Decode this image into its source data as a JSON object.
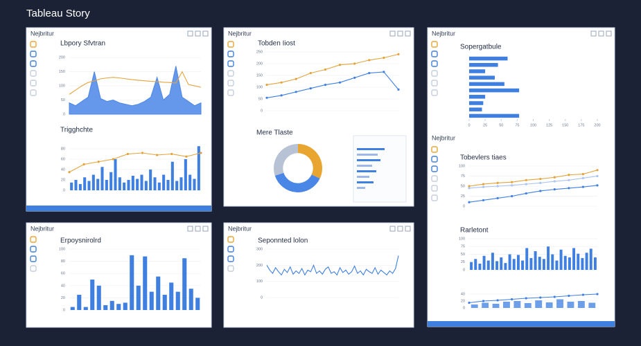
{
  "header": {
    "title": "Tableau Story"
  },
  "panels": [
    {
      "title": "Nejbritur",
      "charts": [
        {
          "type": "area",
          "title": "Lbpory Sfvtran",
          "ylim": [
            0,
            220
          ],
          "yticks": [
            0,
            50,
            100,
            150,
            200
          ],
          "series": [
            {
              "color": "#4a86e6",
              "values": [
                40,
                30,
                45,
                60,
                150,
                55,
                45,
                50,
                40,
                35,
                30,
                35,
                45,
                60,
                130,
                50,
                70,
                170,
                60,
                45,
                30,
                40
              ]
            },
            {
              "color": "#e3a33b",
              "values": [
                70,
                85,
                100,
                112,
                118,
                125,
                128,
                130,
                128,
                125,
                122,
                120,
                118,
                116,
                115,
                113,
                112,
                110,
                150,
                105,
                100,
                95
              ]
            }
          ]
        },
        {
          "type": "bar",
          "title": "Trigghchte",
          "ylim": [
            0,
            100
          ],
          "yticks": [
            0,
            20,
            40,
            60,
            80
          ],
          "series": [
            {
              "color": "#3f7fe0",
              "values": [
                15,
                20,
                12,
                25,
                18,
                30,
                22,
                45,
                20,
                35,
                60,
                25,
                15,
                20,
                28,
                22,
                30,
                18,
                40,
                25,
                15,
                30,
                20,
                55,
                18,
                25,
                60,
                30,
                22,
                85
              ]
            },
            {
              "color": "#e3a33b",
              "line": true,
              "values": [
                35,
                50,
                55,
                60,
                70,
                72,
                68,
                70,
                65,
                72
              ]
            }
          ]
        }
      ]
    },
    {
      "title": "Nejbritur",
      "charts": [
        {
          "type": "line",
          "title": "Tobden Iiost",
          "ylim": [
            0,
            250
          ],
          "yticks": [
            0,
            50,
            100,
            150,
            200,
            250
          ],
          "series": [
            {
              "color": "#e3a33b",
              "values": [
                110,
                120,
                135,
                160,
                175,
                195,
                200,
                215,
                225,
                240
              ]
            },
            {
              "color": "#3f7fe0",
              "values": [
                55,
                65,
                80,
                95,
                110,
                120,
                140,
                160,
                165,
                90
              ]
            }
          ]
        },
        {
          "type": "donut",
          "title": "Mere Tlaste",
          "series": [
            {
              "colors": [
                "#e8a52f",
                "#4a86e6",
                "#b7c2d4"
              ],
              "values": [
                32,
                38,
                30
              ]
            }
          ]
        }
      ]
    },
    {
      "title": "Nejbritur",
      "charts": [
        {
          "type": "hbar",
          "title": "Sopergatbule",
          "xlim": [
            0,
            200
          ],
          "xticks": [
            0,
            25,
            50,
            75,
            100,
            125,
            150,
            175,
            200
          ],
          "series": [
            {
              "color": "#3f7fe0",
              "values": [
                60,
                45,
                25,
                40,
                55,
                78,
                25,
                22,
                20,
                78
              ]
            }
          ]
        },
        {
          "type": "line",
          "label": "Nejbritur",
          "title": "Tobevlers tiaes",
          "ylim": [
            0,
            100
          ],
          "yticks": [
            0,
            25,
            50,
            75,
            100
          ],
          "series": [
            {
              "color": "#e3a33b",
              "values": [
                50,
                55,
                58,
                60,
                65,
                68,
                72,
                78,
                80,
                90
              ]
            },
            {
              "color": "#a9c4f0",
              "values": [
                45,
                48,
                50,
                52,
                55,
                58,
                62,
                65,
                70,
                75
              ]
            },
            {
              "color": "#3f7fe0",
              "values": [
                10,
                15,
                20,
                25,
                32,
                38,
                42,
                45,
                48,
                52
              ]
            }
          ]
        },
        {
          "type": "bar",
          "title": "Rarletont",
          "ylim": [
            0,
            100
          ],
          "yticks": [
            0,
            25,
            50,
            75,
            100
          ],
          "series": [
            {
              "color": "#3f7fe0",
              "values": [
                25,
                35,
                20,
                45,
                30,
                55,
                28,
                40,
                22,
                50,
                35,
                48,
                30,
                70,
                38,
                60,
                42,
                35,
                75,
                50,
                30,
                65,
                45,
                40,
                70,
                52,
                38,
                55,
                68,
                40
              ]
            }
          ]
        },
        {
          "type": "bar",
          "ylim": [
            0,
            60
          ],
          "yticks": [
            0,
            20,
            40
          ],
          "series": [
            {
              "color": "#6d9eea",
              "values": [
                10,
                15,
                12,
                18,
                20,
                14,
                22,
                16,
                25,
                18,
                20,
                15
              ]
            },
            {
              "color": "#3f7fe0",
              "line": true,
              "values": [
                15,
                20,
                22,
                25,
                28,
                30,
                32,
                35,
                38,
                40
              ]
            }
          ]
        }
      ]
    },
    {
      "title": "Nejbritur",
      "charts": [
        {
          "type": "bar",
          "title": "Erpoysnirolrd",
          "ylim": [
            0,
            100
          ],
          "yticks": [
            0,
            20,
            40,
            60,
            80,
            100
          ],
          "series": [
            {
              "color": "#3f7fe0",
              "values": [
                5,
                25,
                5,
                50,
                40,
                8,
                15,
                10,
                12,
                90,
                40,
                88,
                30,
                55,
                25,
                45,
                30,
                85,
                35,
                20
              ]
            }
          ]
        }
      ]
    },
    {
      "title": "Nejbritur",
      "charts": [
        {
          "type": "line",
          "title": "Seponnted lolon",
          "ylim": [
            0,
            300
          ],
          "yticks": [
            0,
            100,
            200,
            300
          ],
          "series": [
            {
              "color": "#3f7fe0",
              "values": [
                200,
                170,
                150,
                185,
                160,
                140,
                175,
                155,
                190,
                145,
                165,
                150,
                180,
                140,
                170,
                160,
                200,
                150,
                165,
                145,
                175,
                190,
                150,
                160,
                140,
                185,
                155,
                170,
                145,
                160,
                195,
                150,
                165,
                140,
                175,
                160,
                150,
                185,
                145,
                170,
                155,
                140,
                165,
                150,
                180,
                260
              ]
            }
          ]
        }
      ]
    }
  ]
}
